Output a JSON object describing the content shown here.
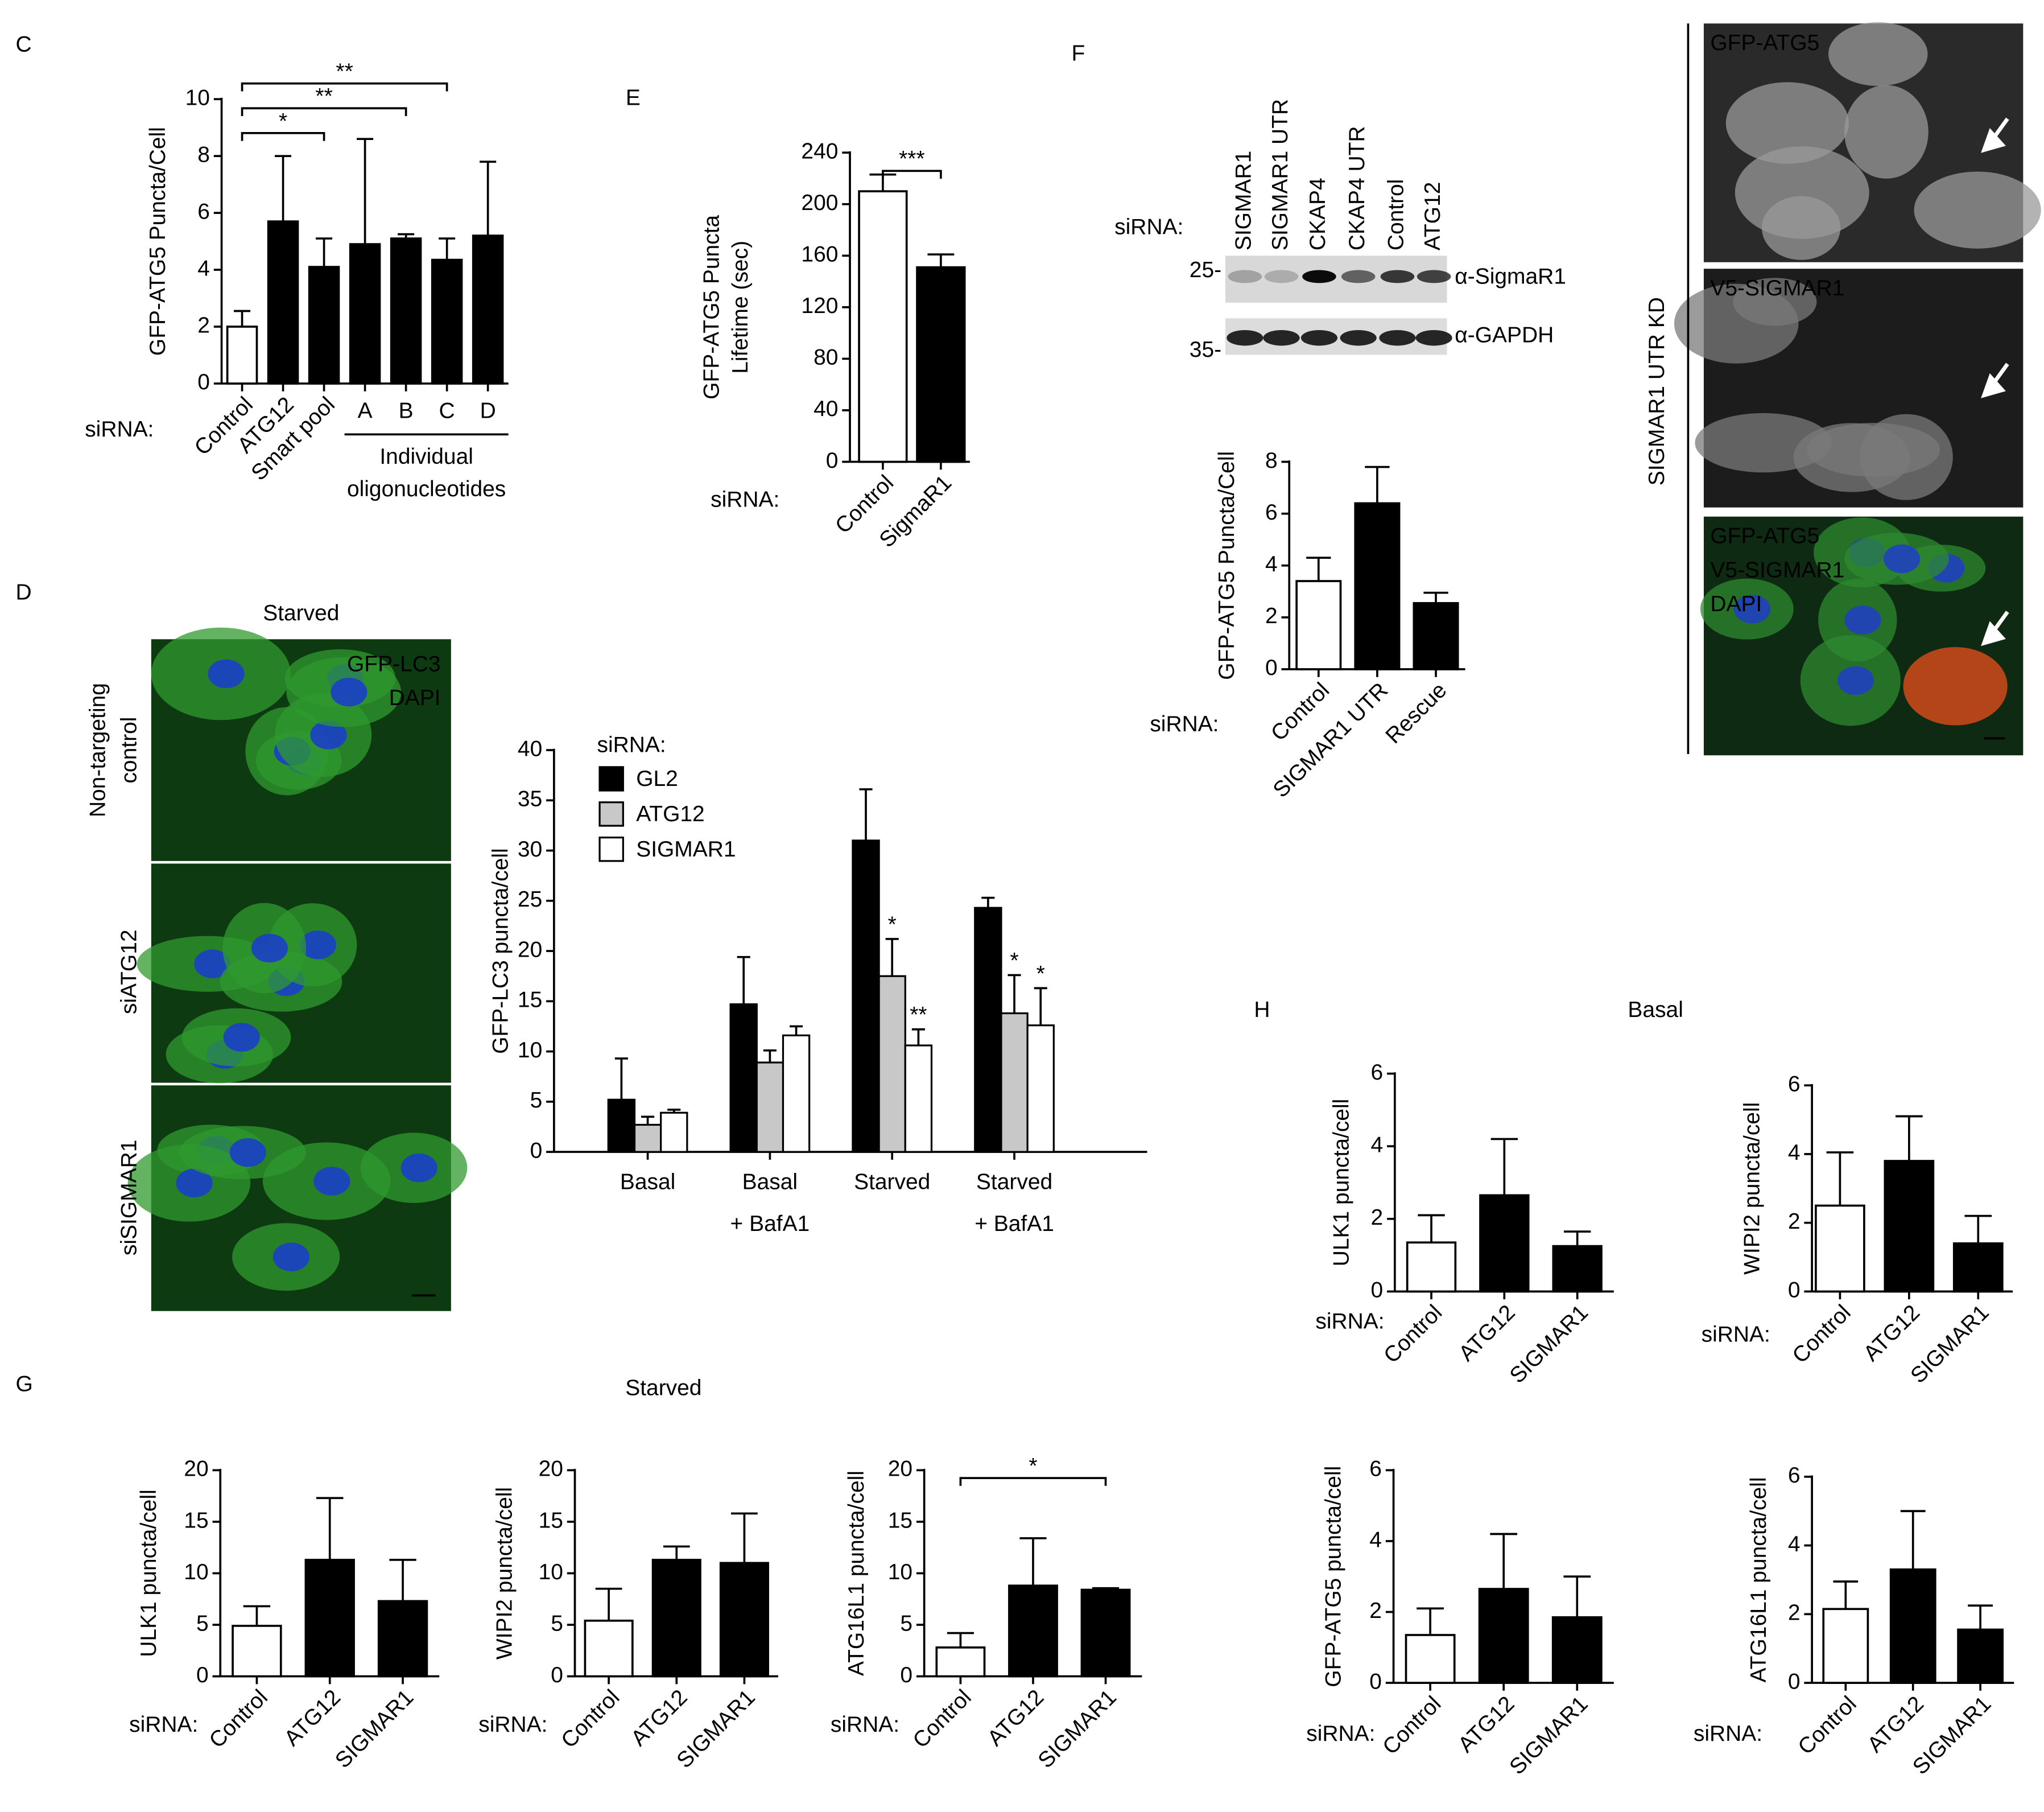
{
  "chart_data": [
    {
      "type": "bar",
      "panel": "C",
      "ylabel": [
        "GFP-ATG5 Puncta/Cell"
      ],
      "xlabel": "siRNA:",
      "categories": [
        "Control",
        "ATG12",
        "Smart pool",
        "A",
        "B",
        "C",
        "D"
      ],
      "values": [
        2.0,
        5.7,
        4.1,
        4.9,
        5.1,
        4.35,
        5.2
      ],
      "errors": [
        0.55,
        2.3,
        1.0,
        3.7,
        0.15,
        0.75,
        2.6
      ],
      "colors": [
        "#ffffff",
        "#000000",
        "#000000",
        "#000000",
        "#000000",
        "#000000",
        "#000000"
      ],
      "ylim": [
        0,
        10
      ],
      "yticks": [
        0,
        2,
        4,
        6,
        8,
        10
      ],
      "groups": [
        {
          "label": [
            "Individual",
            "oligonucleotides"
          ],
          "from": "A",
          "to": "D"
        }
      ],
      "brackets": [
        {
          "from": "Control",
          "to": "Smart pool",
          "text": "*"
        },
        {
          "from": "Control",
          "to": "B",
          "text": "**"
        },
        {
          "from": "Control",
          "to": "C",
          "text": "**"
        }
      ]
    },
    {
      "type": "bar",
      "panel": "E",
      "ylabel": [
        "GFP-ATG5 Puncta",
        "Lifetime (sec)"
      ],
      "xlabel": "siRNA:",
      "categories": [
        "Control",
        "SigmaR1"
      ],
      "values": [
        210,
        151
      ],
      "errors": [
        13,
        10
      ],
      "colors": [
        "#ffffff",
        "#000000"
      ],
      "ylim": [
        0,
        240
      ],
      "yticks": [
        0,
        40,
        80,
        120,
        160,
        200,
        240
      ],
      "brackets": [
        {
          "from": "Control",
          "to": "SigmaR1",
          "text": "***"
        }
      ]
    },
    {
      "type": "bar",
      "ylabel": [
        "GFP-ATG5 Puncta/Cell"
      ],
      "xlabel": "siRNA:",
      "categories": [
        "Control",
        "SIGMAR1 UTR",
        "Rescue"
      ],
      "values": [
        3.4,
        6.4,
        2.55
      ],
      "errors": [
        0.9,
        1.4,
        0.4
      ],
      "colors": [
        "#ffffff",
        "#000000",
        "#000000"
      ],
      "ylim": [
        0,
        8
      ],
      "yticks": [
        0,
        2,
        4,
        6,
        8
      ]
    },
    {
      "type": "bar",
      "ylabel": [
        "GFP-LC3 puncta/cell"
      ],
      "legend_title": "siRNA:",
      "categories": [
        [
          "Basal"
        ],
        [
          "Basal",
          "+ BafA1"
        ],
        [
          "Starved"
        ],
        [
          "Starved",
          "+ BafA1"
        ]
      ],
      "series": [
        {
          "name": "GL2",
          "color": "#000000",
          "values": [
            5.2,
            14.7,
            31.0,
            24.3
          ],
          "errors": [
            4.1,
            4.7,
            5.1,
            1.0
          ],
          "significance": [
            null,
            null,
            null,
            null
          ]
        },
        {
          "name": "ATG12",
          "color": "#c8c8c8",
          "values": [
            2.7,
            8.9,
            17.5,
            13.8
          ],
          "errors": [
            0.8,
            1.2,
            3.7,
            3.8
          ],
          "significance": [
            null,
            null,
            "*",
            "*"
          ]
        },
        {
          "name": "SIGMAR1",
          "color": "#ffffff",
          "values": [
            3.9,
            11.6,
            10.6,
            12.6
          ],
          "errors": [
            0.3,
            0.9,
            1.6,
            3.7
          ],
          "significance": [
            null,
            null,
            "**",
            "*"
          ]
        }
      ],
      "ylim": [
        0,
        40
      ],
      "yticks": [
        0,
        5,
        10,
        15,
        20,
        25,
        30,
        35,
        40
      ]
    },
    {
      "type": "bar",
      "panel": "G",
      "title": "Starved",
      "ylabel": [
        "ULK1 puncta/cell"
      ],
      "xlabel": "siRNA:",
      "categories": [
        "Control",
        "ATG12",
        "SIGMAR1"
      ],
      "values": [
        4.9,
        11.3,
        7.3
      ],
      "errors": [
        1.9,
        6.0,
        4.0
      ],
      "colors": [
        "#ffffff",
        "#000000",
        "#000000"
      ],
      "ylim": [
        0,
        20
      ],
      "yticks": [
        0,
        5,
        10,
        15,
        20
      ]
    },
    {
      "type": "bar",
      "ylabel": [
        "WIPI2 puncta/cell"
      ],
      "xlabel": "siRNA:",
      "categories": [
        "Control",
        "ATG12",
        "SIGMAR1"
      ],
      "values": [
        5.4,
        11.3,
        11.0
      ],
      "errors": [
        3.1,
        1.3,
        4.8
      ],
      "colors": [
        "#ffffff",
        "#000000",
        "#000000"
      ],
      "ylim": [
        0,
        20
      ],
      "yticks": [
        0,
        5,
        10,
        15,
        20
      ]
    },
    {
      "type": "bar",
      "ylabel": [
        "ATG16L1 puncta/cell"
      ],
      "xlabel": "siRNA:",
      "categories": [
        "Control",
        "ATG12",
        "SIGMAR1"
      ],
      "values": [
        2.8,
        8.8,
        8.4
      ],
      "errors": [
        1.4,
        4.6,
        0.15
      ],
      "colors": [
        "#ffffff",
        "#000000",
        "#000000"
      ],
      "ylim": [
        0,
        20
      ],
      "yticks": [
        0,
        5,
        10,
        15,
        20
      ],
      "brackets": [
        {
          "from": "Control",
          "to": "SIGMAR1",
          "text": "*"
        }
      ]
    },
    {
      "type": "bar",
      "panel": "H",
      "title": "Basal",
      "ylabel": [
        "ULK1 puncta/cell"
      ],
      "xlabel": "siRNA:",
      "categories": [
        "Control",
        "ATG12",
        "SIGMAR1"
      ],
      "values": [
        1.35,
        2.65,
        1.25
      ],
      "errors": [
        0.75,
        1.55,
        0.4
      ],
      "colors": [
        "#ffffff",
        "#000000",
        "#000000"
      ],
      "ylim": [
        0,
        6
      ],
      "yticks": [
        0,
        2,
        4,
        6
      ]
    },
    {
      "type": "bar",
      "ylabel": [
        "WIPI2 puncta/cell"
      ],
      "xlabel": "siRNA:",
      "categories": [
        "Control",
        "ATG12",
        "SIGMAR1"
      ],
      "values": [
        2.5,
        3.8,
        1.4
      ],
      "errors": [
        1.55,
        1.3,
        0.8
      ],
      "colors": [
        "#ffffff",
        "#000000",
        "#000000"
      ],
      "ylim": [
        0,
        6
      ],
      "yticks": [
        0,
        2,
        4,
        6
      ]
    },
    {
      "type": "bar",
      "ylabel": [
        "GFP-ATG5 puncta/cell"
      ],
      "xlabel": "siRNA:",
      "categories": [
        "Control",
        "ATG12",
        "SIGMAR1"
      ],
      "values": [
        1.35,
        2.65,
        1.85
      ],
      "errors": [
        0.75,
        1.55,
        1.15
      ],
      "colors": [
        "#ffffff",
        "#000000",
        "#000000"
      ],
      "ylim": [
        0,
        6
      ],
      "yticks": [
        0,
        2,
        4,
        6
      ]
    },
    {
      "type": "bar",
      "ylabel": [
        "ATG16L1 puncta/cell"
      ],
      "xlabel": "siRNA:",
      "categories": [
        "Control",
        "ATG12",
        "SIGMAR1"
      ],
      "values": [
        2.15,
        3.3,
        1.55
      ],
      "errors": [
        0.8,
        1.7,
        0.7
      ],
      "colors": [
        "#ffffff",
        "#000000",
        "#000000"
      ],
      "ylim": [
        0,
        6
      ],
      "yticks": [
        0,
        2,
        4,
        6
      ]
    }
  ],
  "panel_d_images": {
    "panel": "D",
    "title": "Starved",
    "channels": [
      "GFP-LC3",
      "DAPI"
    ],
    "rows": [
      [
        "Non-targeting",
        "control"
      ],
      [
        "siATG12"
      ],
      [
        "siSIGMAR1"
      ]
    ]
  },
  "panel_f_blot": {
    "panel": "F",
    "prefix": "siRNA:",
    "lanes": [
      "SIGMAR1",
      "SIGMAR1 UTR",
      "CKAP4",
      "CKAP4 UTR",
      "Control",
      "ATG12"
    ],
    "markers": [
      "25-",
      "35-"
    ],
    "antibodies": [
      "α-SigmaR1",
      "α-GAPDH"
    ]
  },
  "panel_f_images": {
    "side_label": "SIGMAR1 UTR KD",
    "panels": [
      [
        "GFP-ATG5"
      ],
      [
        "V5-SIGMAR1"
      ],
      [
        "GFP-ATG5",
        "V5-SIGMAR1",
        "DAPI"
      ]
    ]
  }
}
